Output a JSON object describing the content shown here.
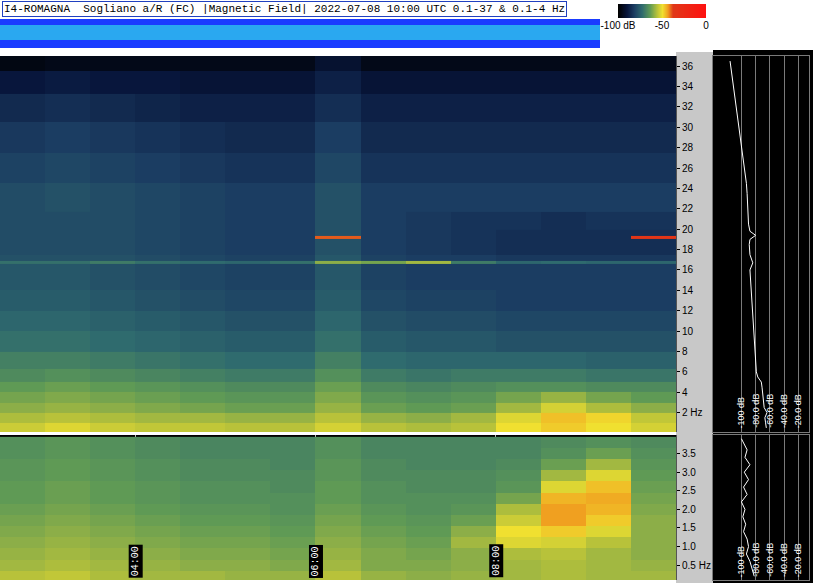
{
  "chart_data": [
    {
      "type": "heatmap",
      "title": "I4-ROMAGNA  Sogliano a/R (FC) |Magnetic Field| 2022-07-08 10:00 UTC 0.1-37 & 0.1-4 Hz",
      "x": [
        2.75,
        3.25,
        3.75,
        4.25,
        4.75,
        5.25,
        5.75,
        6.25,
        6.75,
        7.25,
        7.75,
        8.25,
        8.75,
        9.25,
        9.75
      ],
      "y": [
        0.5,
        1.5,
        2.5,
        3.5,
        4.5,
        5.5,
        7,
        9,
        11,
        13,
        15,
        16.4,
        16.7,
        17,
        18,
        18.9,
        19.2,
        19.5,
        20.4,
        23,
        26,
        29,
        32,
        34.5,
        36.5
      ],
      "z": [
        [
          -54,
          -52,
          -54,
          -55,
          -55,
          -56,
          -56,
          -53,
          -56,
          -57,
          -56,
          -50,
          -48,
          -50,
          -53
        ],
        [
          -57,
          -56,
          -57,
          -58,
          -58,
          -59,
          -59,
          -56,
          -59,
          -60,
          -58,
          -52,
          -47,
          -49,
          -55
        ],
        [
          -60,
          -59,
          -60,
          -61,
          -62,
          -63,
          -63,
          -59,
          -63,
          -64,
          -63,
          -58,
          -53,
          -57,
          -60
        ],
        [
          -62,
          -61,
          -62,
          -63,
          -64,
          -65,
          -65,
          -61,
          -65,
          -66,
          -65,
          -62,
          -59,
          -62,
          -64
        ],
        [
          -64,
          -63,
          -64,
          -65,
          -66,
          -67,
          -67,
          -63,
          -67,
          -68,
          -67,
          -66,
          -66,
          -67,
          -67
        ],
        [
          -67,
          -66,
          -67,
          -68,
          -69,
          -70,
          -70,
          -66,
          -70,
          -71,
          -70,
          -70,
          -70,
          -71,
          -71
        ],
        [
          -69,
          -69,
          -70,
          -71,
          -72,
          -73,
          -73,
          -69,
          -73,
          -74,
          -74,
          -74,
          -74,
          -75,
          -75
        ],
        [
          -72,
          -72,
          -73,
          -74,
          -75,
          -76,
          -76,
          -72,
          -76,
          -77,
          -77,
          -78,
          -78,
          -78,
          -78
        ],
        [
          -74,
          -74,
          -75,
          -76,
          -77,
          -78,
          -78,
          -74,
          -78,
          -79,
          -79,
          -80,
          -80,
          -80,
          -80
        ],
        [
          -76,
          -76,
          -77,
          -78,
          -79,
          -80,
          -80,
          -76,
          -80,
          -81,
          -81,
          -82,
          -82,
          -82,
          -82
        ],
        [
          -77,
          -77,
          -78,
          -79,
          -80,
          -81,
          -81,
          -77,
          -81,
          -82,
          -82,
          -82,
          -82,
          -82,
          -82
        ],
        [
          -77,
          -77,
          -78,
          -79,
          -80,
          -81,
          -81,
          -77,
          -81,
          -82,
          -82,
          -82,
          -82,
          -82,
          -82
        ],
        [
          -72,
          -72,
          -70,
          -72,
          -73,
          -74,
          -72,
          -60,
          -62,
          -58,
          -70,
          -74,
          -73,
          -74,
          -74
        ],
        [
          -78,
          -78,
          -78,
          -79,
          -80,
          -81,
          -81,
          -77,
          -81,
          -82,
          -82,
          -83,
          -83,
          -83,
          -83
        ],
        [
          -79,
          -79,
          -79,
          -80,
          -81,
          -82,
          -82,
          -78,
          -82,
          -83,
          -84,
          -85,
          -85,
          -85,
          -85
        ],
        [
          -79,
          -79,
          -79,
          -80,
          -81,
          -82,
          -82,
          -78,
          -82,
          -83,
          -84,
          -85,
          -85,
          -85,
          -85
        ],
        [
          -79,
          -79,
          -79,
          -80,
          -81,
          -82,
          -82,
          -40,
          -82,
          -83,
          -84,
          -85,
          -85,
          -85,
          -35
        ],
        [
          -79,
          -79,
          -79,
          -80,
          -81,
          -82,
          -82,
          -78,
          -82,
          -83,
          -84,
          -85,
          -85,
          -85,
          -85
        ],
        [
          -79,
          -79,
          -79,
          -80,
          -81,
          -82,
          -82,
          -78,
          -82,
          -83,
          -84,
          -84,
          -85,
          -84,
          -84
        ],
        [
          -79,
          -78,
          -79,
          -80,
          -81,
          -82,
          -82,
          -78,
          -82,
          -82,
          -82,
          -82,
          -82,
          -82,
          -82
        ],
        [
          -81,
          -80,
          -81,
          -82,
          -83,
          -84,
          -84,
          -80,
          -84,
          -84,
          -84,
          -84,
          -84,
          -84,
          -84
        ],
        [
          -83,
          -82,
          -83,
          -84,
          -85,
          -86,
          -86,
          -82,
          -86,
          -86,
          -86,
          -86,
          -86,
          -86,
          -86
        ],
        [
          -86,
          -85,
          -86,
          -87,
          -88,
          -88,
          -88,
          -85,
          -88,
          -88,
          -88,
          -88,
          -88,
          -88,
          -88
        ],
        [
          -90,
          -89,
          -90,
          -90,
          -91,
          -91,
          -91,
          -88,
          -91,
          -91,
          -91,
          -91,
          -91,
          -91,
          -91
        ],
        [
          -97,
          -96,
          -96,
          -96,
          -96,
          -96,
          -96,
          -92,
          -96,
          -96,
          -96,
          -96,
          -96,
          -96,
          -96
        ]
      ],
      "xlim": [
        2.5,
        10
      ],
      "xticks": [
        4,
        6,
        8
      ],
      "ylim": [
        0.1,
        37
      ],
      "yticks": [
        {
          "value": 2,
          "label": "2 Hz"
        },
        4,
        6,
        8,
        10,
        12,
        14,
        16,
        18,
        20,
        22,
        24,
        26,
        28,
        30,
        32,
        34,
        36
      ],
      "color_range": [
        -100,
        0
      ],
      "color_ticks": [
        {
          "value": -100,
          "label": "-100 dB"
        },
        -50,
        0
      ],
      "grid": true,
      "tick_labels": "y"
    },
    {
      "type": "heatmap",
      "x": [
        2.75,
        3.25,
        3.75,
        4.25,
        4.75,
        5.25,
        5.75,
        6.25,
        6.75,
        7.25,
        7.75,
        8.25,
        8.75,
        9.25,
        9.75
      ],
      "y": [
        0.2,
        0.5,
        0.8,
        1.1,
        1.4,
        1.7,
        2.0,
        2.3,
        2.6,
        2.9,
        3.2,
        3.5,
        3.8
      ],
      "z": [
        [
          -56,
          -55,
          -57,
          -58,
          -58,
          -59,
          -59,
          -56,
          -59,
          -60,
          -59,
          -58,
          -57,
          -58,
          -58
        ],
        [
          -58,
          -57,
          -58,
          -59,
          -60,
          -60,
          -61,
          -58,
          -61,
          -61,
          -60,
          -58,
          -57,
          -58,
          -59
        ],
        [
          -59,
          -58,
          -59,
          -60,
          -61,
          -61,
          -62,
          -59,
          -61,
          -62,
          -60,
          -57,
          -56,
          -58,
          -60
        ],
        [
          -60,
          -59,
          -60,
          -61,
          -62,
          -62,
          -63,
          -60,
          -62,
          -63,
          -58,
          -52,
          -53,
          -56,
          -60
        ],
        [
          -61,
          -60,
          -61,
          -62,
          -63,
          -63,
          -64,
          -61,
          -63,
          -64,
          -60,
          -50,
          -48,
          -52,
          -60
        ],
        [
          -62,
          -61,
          -62,
          -63,
          -64,
          -64,
          -65,
          -62,
          -64,
          -65,
          -63,
          -54,
          -44,
          -48,
          -60
        ],
        [
          -63,
          -62,
          -63,
          -64,
          -65,
          -65,
          -66,
          -63,
          -65,
          -66,
          -65,
          -57,
          -44,
          -46,
          -61
        ],
        [
          -64,
          -63,
          -64,
          -65,
          -66,
          -66,
          -66,
          -64,
          -66,
          -66,
          -66,
          -62,
          -46,
          -45,
          -62
        ],
        [
          -64,
          -63,
          -64,
          -65,
          -66,
          -66,
          -67,
          -64,
          -66,
          -67,
          -67,
          -65,
          -52,
          -47,
          -63
        ],
        [
          -65,
          -64,
          -65,
          -66,
          -67,
          -67,
          -67,
          -65,
          -67,
          -67,
          -67,
          -66,
          -58,
          -52,
          -64
        ],
        [
          -65,
          -64,
          -65,
          -66,
          -67,
          -67,
          -68,
          -65,
          -67,
          -68,
          -68,
          -67,
          -63,
          -58,
          -65
        ],
        [
          -66,
          -65,
          -66,
          -67,
          -68,
          -68,
          -68,
          -66,
          -68,
          -68,
          -68,
          -68,
          -66,
          -63,
          -66
        ],
        [
          -66,
          -65,
          -66,
          -67,
          -68,
          -68,
          -68,
          -66,
          -68,
          -68,
          -68,
          -68,
          -67,
          -66,
          -67
        ]
      ],
      "xlim": [
        2.5,
        10
      ],
      "xticks": [
        {
          "value": 4,
          "label": "04:00"
        },
        {
          "value": 6,
          "label": "06:00"
        },
        {
          "value": 8,
          "label": "08:00"
        }
      ],
      "ylim": [
        0.1,
        4
      ],
      "yticks": [
        {
          "value": 0.5,
          "label": "0.5 Hz"
        },
        {
          "value": 1,
          "label": "1.0"
        },
        1.5,
        {
          "value": 2,
          "label": "2.0"
        },
        2.5,
        {
          "value": 3,
          "label": "3.0"
        },
        3.5
      ],
      "grid": true
    },
    {
      "type": "line",
      "color": "#ffffff",
      "x": [
        -116,
        -114,
        -113,
        -110,
        -108,
        -106,
        -104,
        -102,
        -101,
        -98,
        -96,
        -94,
        -93,
        -92,
        -91,
        -91,
        -90,
        -88,
        -80,
        -88,
        -89,
        -88,
        -84,
        -88,
        -87,
        -86,
        -86,
        -85,
        -84,
        -83,
        -82,
        -81,
        -80,
        -79,
        -77,
        -72,
        -71,
        -70,
        -70,
        -69,
        -68,
        -64,
        -67,
        -66,
        -65
      ],
      "y": [
        36.5,
        35.5,
        34.5,
        33.5,
        32.5,
        31.5,
        30.5,
        29.5,
        28.5,
        27.5,
        26.5,
        25.5,
        24.5,
        23.5,
        22.5,
        21.5,
        20.5,
        19.8,
        19.4,
        19.0,
        18.5,
        17.5,
        16.7,
        16,
        15,
        14,
        13,
        12,
        11,
        10,
        9,
        8,
        7,
        6,
        5.5,
        5,
        4.5,
        4,
        3.5,
        3,
        2.5,
        2,
        1.5,
        1,
        0.5
      ],
      "xlim": [
        -140,
        -5
      ],
      "xticks": [
        {
          "value": -100,
          "label": "-100 dB"
        },
        {
          "value": -80,
          "label": "-80.0 dB"
        },
        {
          "value": -60,
          "label": "-60.0 dB"
        },
        {
          "value": -40,
          "label": "-40.0 dB"
        },
        {
          "value": -20,
          "label": "-20.0 dB"
        }
      ],
      "ylim": [
        0.1,
        37
      ],
      "grid": true
    },
    {
      "type": "line",
      "color": "#ffffff",
      "x": [
        -100,
        -92,
        -95,
        -88,
        -96,
        -90,
        -97,
        -92,
        -100,
        -95,
        -98,
        -94,
        -97,
        -92,
        -90,
        -93,
        -88,
        -85,
        -82
      ],
      "y": [
        3.9,
        3.6,
        3.4,
        3.2,
        3.0,
        2.8,
        2.6,
        2.4,
        2.2,
        2.0,
        1.8,
        1.6,
        1.4,
        1.2,
        1.0,
        0.8,
        0.6,
        0.4,
        0.2
      ],
      "xlim": [
        -140,
        -5
      ],
      "xticks": [
        {
          "value": -100,
          "label": "-100 dB"
        },
        {
          "value": -80,
          "label": "-80.0 dB"
        },
        {
          "value": -60,
          "label": "-60.0 dB"
        },
        {
          "value": -40,
          "label": "-40.0 dB"
        },
        {
          "value": -20,
          "label": "-20.0 dB"
        }
      ],
      "ylim": [
        0.1,
        4
      ],
      "grid": true
    }
  ]
}
